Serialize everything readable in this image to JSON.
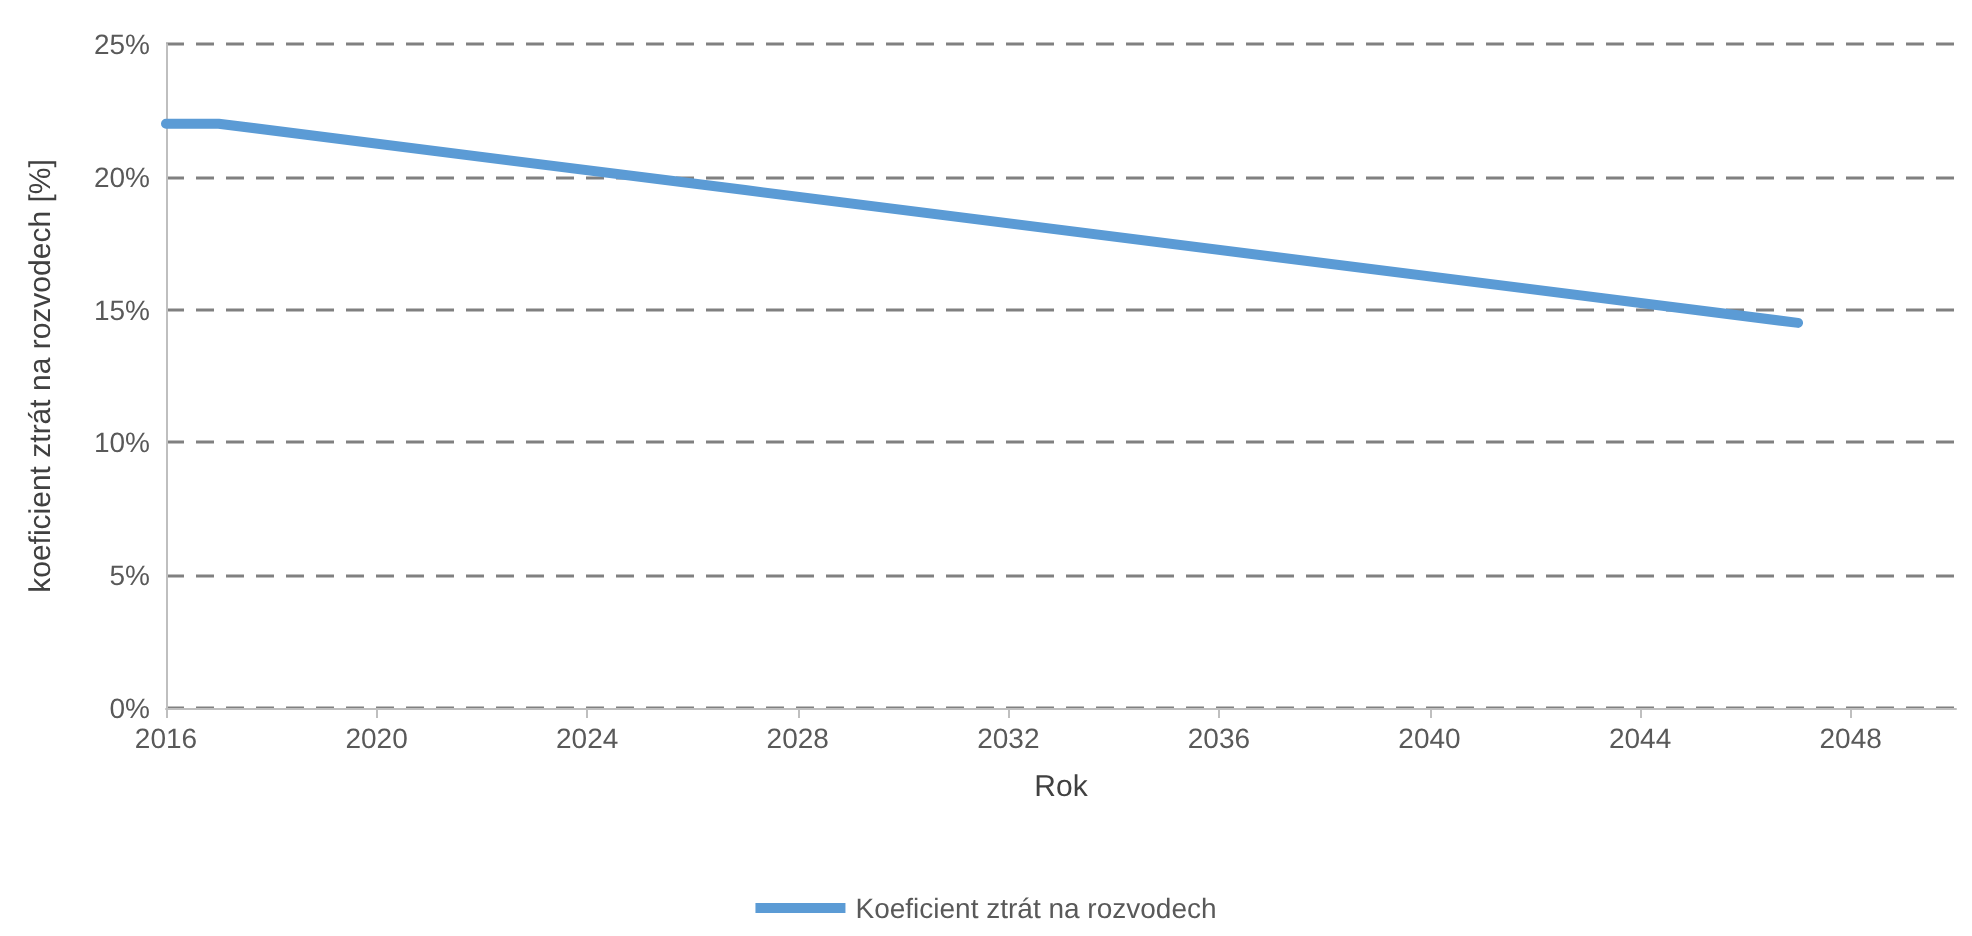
{
  "chart_data": {
    "type": "line",
    "xlabel": "Rok",
    "ylabel": "koeficient ztrát na rozvodech [%]",
    "x": [
      2016,
      2017,
      2027,
      2037,
      2047
    ],
    "series": [
      {
        "name": "Koeficient ztrát na rozvodech",
        "color": "#5b9bd5",
        "values": [
          22,
          22,
          19.5,
          17,
          14.5
        ]
      }
    ],
    "xlim": [
      2016,
      2050
    ],
    "xticks": [
      2016,
      2020,
      2024,
      2028,
      2032,
      2036,
      2040,
      2044,
      2048
    ],
    "ylim": [
      0,
      25
    ],
    "yticks": [
      {
        "value": 0,
        "label": "0%"
      },
      {
        "value": 5,
        "label": "5%"
      },
      {
        "value": 10,
        "label": "10%"
      },
      {
        "value": 15,
        "label": "15%"
      },
      {
        "value": 20,
        "label": "20%"
      },
      {
        "value": 25,
        "label": "25%"
      }
    ],
    "grid": "y",
    "legend": "bottom",
    "marker": "none",
    "line_style": "solid"
  }
}
